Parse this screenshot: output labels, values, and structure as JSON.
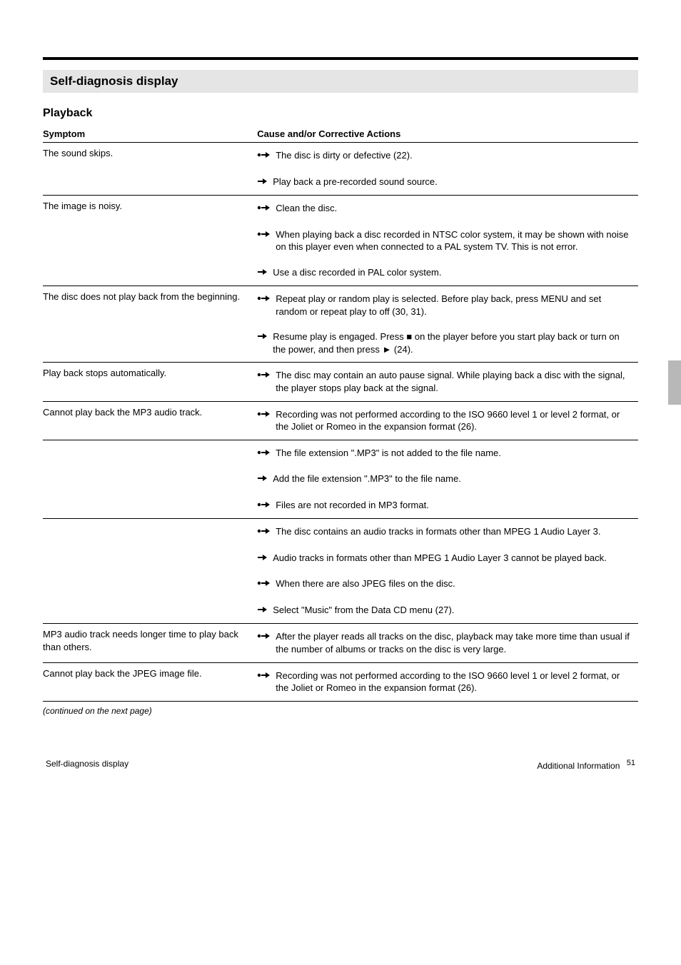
{
  "colors": {
    "title_bg": "#e5e5e5",
    "side_tab": "#b8b8b8",
    "text": "#000000",
    "rule": "#000000"
  },
  "title": "Self-diagnosis display",
  "subtitle": "Playback",
  "columns": {
    "symptom": "Symptom",
    "cause": "Cause and/or Corrective Actions"
  },
  "rows": [
    {
      "symptom": "The sound skips.",
      "causes": [
        {
          "bullet": "dotarrow",
          "text": "The disc is dirty or defective (22)."
        },
        {
          "bullet": "arrow",
          "text": "Play back a pre-recorded sound source."
        }
      ]
    },
    {
      "symptom": "The image is noisy.",
      "causes": [
        {
          "bullet": "dotarrow",
          "text": "Clean the disc."
        },
        {
          "bullet": "dotarrow",
          "text": "When playing back a disc recorded in NTSC color system, it may be shown with noise on this player even when connected to a PAL system TV. This is not error."
        },
        {
          "bullet": "arrow",
          "text": "Use a disc recorded in PAL color system."
        }
      ]
    },
    {
      "symptom": "The disc does not play back from the beginning.",
      "causes": [
        {
          "bullet": "dotarrow",
          "text": "Repeat play or random play is selected. Before play back, press MENU and set random or repeat play to off (30, 31)."
        },
        {
          "bullet": "arrow",
          "text": "Resume play is engaged. Press  ■  on the player before you start play back or turn on the power, and then press  ►  (24)."
        }
      ]
    },
    {
      "symptom": "Play back stops automatically.",
      "causes": [
        {
          "bullet": "dotarrow",
          "text": "The disc may contain an auto pause signal. While playing back a disc with the signal, the player stops play back at the signal."
        }
      ]
    },
    {
      "symptom": "Cannot play back the MP3 audio track.",
      "causes": [
        {
          "bullet": "dotarrow",
          "text": "Recording was not performed according to the ISO 9660 level 1 or level 2 format, or the Joliet or Romeo in the expansion format (26)."
        }
      ]
    },
    {
      "symptom": "",
      "causes": [
        {
          "bullet": "dotarrow",
          "text": "The file extension \".MP3\" is not added to the file name."
        },
        {
          "bullet": "arrow",
          "text": "Add the file extension \".MP3\" to the file name."
        },
        {
          "bullet": "dotarrow",
          "text": "Files are not recorded in MP3 format."
        }
      ]
    },
    {
      "symptom": "",
      "causes": [
        {
          "bullet": "dotarrow",
          "text": "The disc contains an audio tracks in formats other than MPEG 1 Audio Layer 3."
        },
        {
          "bullet": "arrow",
          "text": "Audio tracks in formats other than MPEG 1 Audio Layer 3 cannot be played back."
        },
        {
          "bullet": "dotarrow",
          "text": "When there are also JPEG files on the disc."
        },
        {
          "bullet": "arrow",
          "text": "Select \"Music\" from the Data CD menu (27)."
        }
      ]
    },
    {
      "symptom": "MP3 audio track needs longer time to play back than others.",
      "causes": [
        {
          "bullet": "dotarrow",
          "text": "After the player reads all tracks on the disc, playback may take more time than usual if the number of albums or tracks on the disc is very large."
        }
      ]
    },
    {
      "symptom": "Cannot play back the JPEG image file.",
      "causes": [
        {
          "bullet": "dotarrow",
          "text": "Recording was not performed according to the ISO 9660 level 1 or level 2 format, or the Joliet or Romeo in the expansion format (26)."
        }
      ]
    }
  ],
  "continued": "(continued on the next page)",
  "footer": {
    "left": "Self-diagnosis display",
    "right": "Additional Information",
    "page": "51"
  }
}
